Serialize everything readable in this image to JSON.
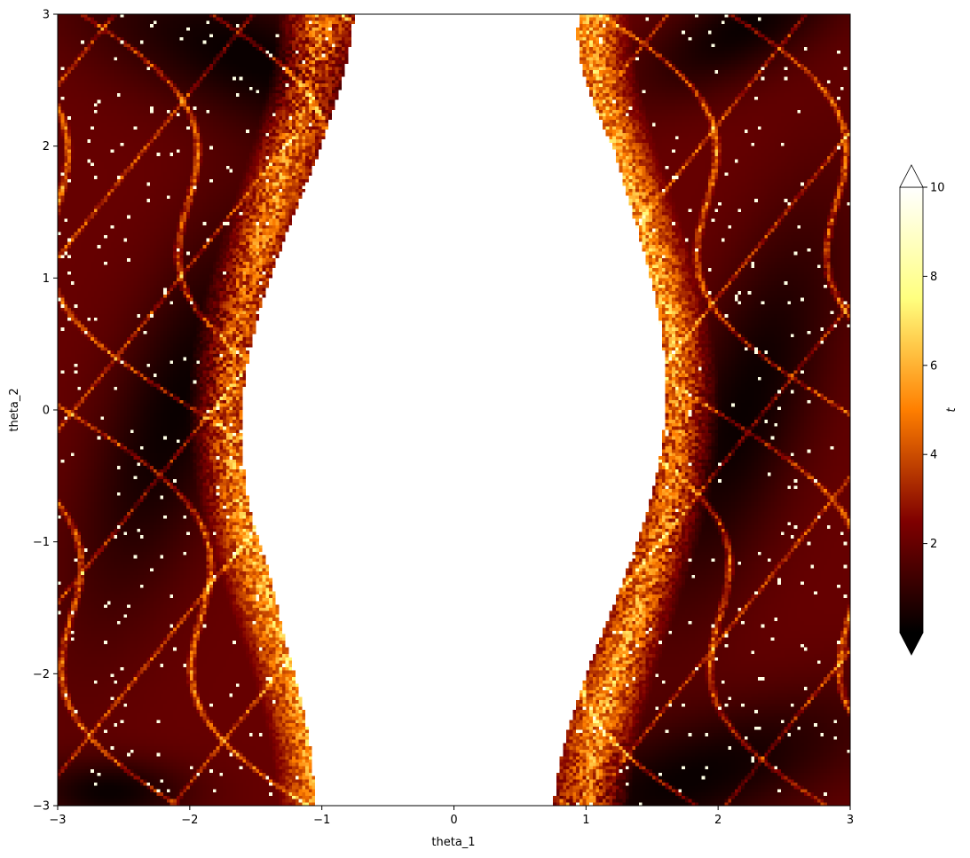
{
  "chart_data": {
    "type": "heatmap",
    "title": "",
    "xlabel": "theta_1",
    "ylabel": "theta_2",
    "xlim": [
      -3,
      3
    ],
    "ylim": [
      -3,
      3
    ],
    "xticks": [
      -3,
      -2,
      -1,
      0,
      1,
      2,
      3
    ],
    "yticks": [
      -3,
      -2,
      -1,
      0,
      1,
      2,
      3
    ],
    "xtick_labels": [
      "−3",
      "−2",
      "−1",
      "0",
      "1",
      "2",
      "3"
    ],
    "ytick_labels": [
      "−3",
      "−2",
      "−1",
      "0",
      "1",
      "2",
      "3"
    ],
    "colorbar": {
      "label": "t",
      "colormap": "afmhot",
      "vmin": 0,
      "vmax": 10,
      "extend": "both",
      "ticks": [
        2,
        4,
        6,
        8,
        10
      ],
      "tick_labels": [
        "2",
        "4",
        "6",
        "8",
        "10"
      ]
    },
    "grid": false,
    "pattern": "central white (t>=10) region around theta_1≈0 elongated vertically; dark (t<1) lobes at top-left/top-right and bottom corners; dark-red lobes at left and right; fractal orange/yellow filaments along boundaries"
  }
}
